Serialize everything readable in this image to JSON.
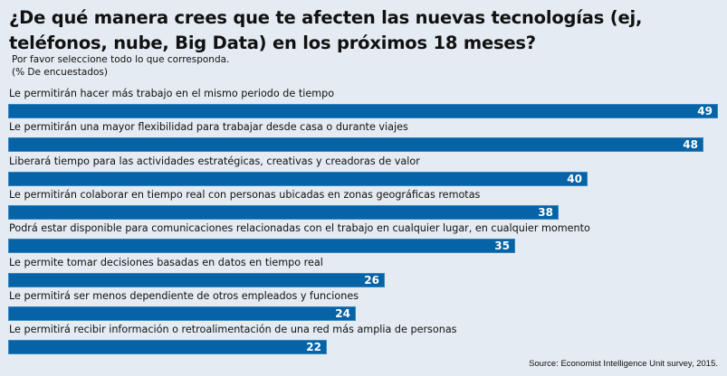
{
  "chart_data": {
    "type": "bar",
    "orientation": "horizontal",
    "title": "¿De qué manera crees que te afecten las nuevas tecnologías (ej, teléfonos, nube, Big Data) en los próximos 18 meses?",
    "subtitle": "Por favor seleccione todo lo que corresponda.",
    "unit_note": "(% De encuestados)",
    "xlabel": "",
    "ylabel": "",
    "xlim": [
      0,
      49
    ],
    "grid": false,
    "legend": "none",
    "bar_color": "#0563a6",
    "value_label_color": "#ffffff",
    "categories": [
      "Le permitirán hacer más trabajo en el mismo periodo de tiempo",
      "Le permitirán una mayor flexibilidad para trabajar desde casa o durante viajes",
      "Liberará tiempo para las actividades estratégicas, creativas y creadoras de valor",
      "Le permitirán colaborar en tiempo real con personas ubicadas en zonas geográficas remotas",
      "Podrá estar disponible para comunicaciones relacionadas con el trabajo en cualquier lugar, en cualquier momento",
      "Le permite tomar decisiones basadas en datos en tiempo real",
      "Le permitirá ser menos dependiente de otros empleados y funciones",
      "Le permitirá recibir información o retroalimentación de una red más amplia de personas"
    ],
    "values": [
      49,
      48,
      40,
      38,
      35,
      26,
      24,
      22
    ],
    "source": "Source: Economist Intelligence Unit survey, 2015."
  }
}
